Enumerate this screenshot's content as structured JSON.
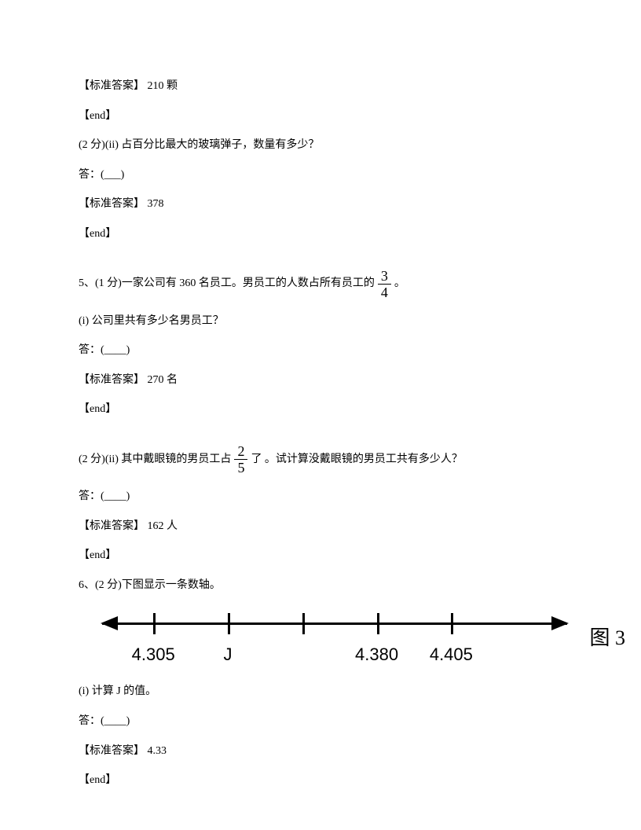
{
  "q4b": {
    "answer_label": "【标准答案】",
    "answer_value": "210 颗",
    "end": "【end】",
    "sub_ii": "(2 分)(ii) 占百分比最大的玻璃弹子，数量有多少？",
    "answer_prompt": "答：(___)",
    "sub_ii_answer": "378"
  },
  "q5": {
    "stem_a": "5、(1 分)一家公司有 360 名员工。男员工的人数占所有员工的",
    "frac1_num": "3",
    "frac1_den": "4",
    "stem_b": "。",
    "sub_i": "(i) 公司里共有多少名男员工？",
    "answer_prompt": "答：(____)",
    "answer_label": "【标准答案】",
    "sub_i_answer": "270 名",
    "end": "【end】",
    "sub_ii_a": "(2 分)(ii) 其中戴眼镜的男员工占",
    "frac2_num": "2",
    "frac2_den": "5",
    "sub_ii_b": "了 。试计算没戴眼镜的男员工共有多少人？",
    "sub_ii_answer": "162 人"
  },
  "q6": {
    "stem": "6、(2 分)下图显示一条数轴。",
    "ticks": [
      {
        "pos_pct": 11,
        "label": "4.305"
      },
      {
        "pos_pct": 27,
        "label": "J"
      },
      {
        "pos_pct": 43,
        "label": ""
      },
      {
        "pos_pct": 59,
        "label": "4.380"
      },
      {
        "pos_pct": 75,
        "label": "4.405"
      }
    ],
    "fig_label": "图 3",
    "sub_i": "(i) 计算 J 的值。",
    "answer_prompt": "答：(____)",
    "answer_label": "【标准答案】",
    "sub_i_answer": "4.33",
    "end": "【end】"
  }
}
